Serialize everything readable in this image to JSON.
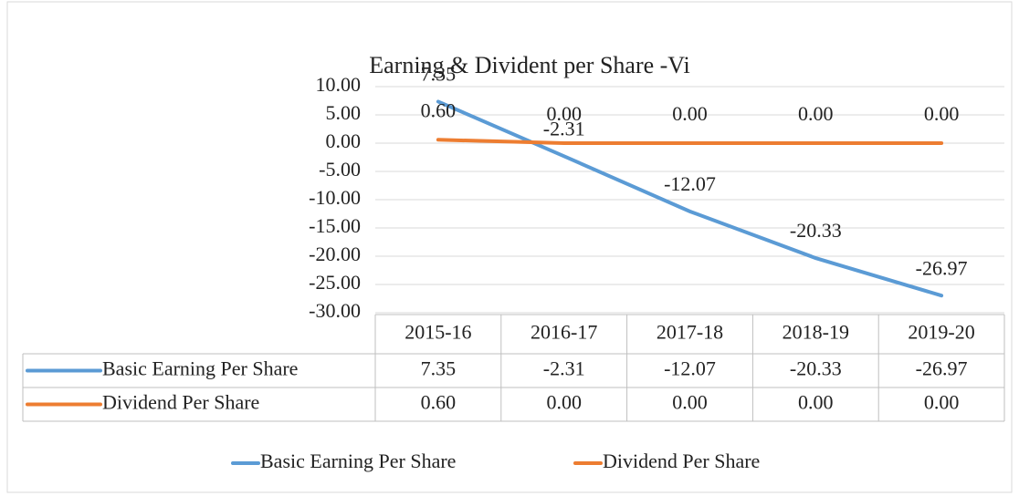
{
  "chart_data": {
    "type": "line",
    "title": "Earning & Divident per Share -Vi",
    "categories": [
      "2015-16",
      "2016-17",
      "2017-18",
      "2018-19",
      "2019-20"
    ],
    "series": [
      {
        "name": "Basic Earning Per Share",
        "color": "#5b9bd5",
        "values": [
          7.35,
          -2.31,
          -12.07,
          -20.33,
          -26.97
        ]
      },
      {
        "name": "Dividend Per Share",
        "color": "#ed7d31",
        "values": [
          0.6,
          0,
          0,
          0,
          0
        ],
        "value_labels": [
          "0.60",
          "0.00",
          "0.00",
          "0.00",
          "0.00"
        ]
      }
    ],
    "ylim": [
      -30,
      10
    ],
    "yticks": [
      {
        "value": -30,
        "label": "-30.00"
      },
      {
        "value": -25,
        "label": "-25.00"
      },
      {
        "value": -20,
        "label": "-20.00"
      },
      {
        "value": -15,
        "label": "-15.00"
      },
      {
        "value": -10,
        "label": "-10.00"
      },
      {
        "value": -5,
        "label": "-5.00"
      },
      {
        "value": 0,
        "label": "0.00"
      },
      {
        "value": 5,
        "label": "5.00"
      },
      {
        "value": 10,
        "label": "10.00"
      }
    ],
    "grid": true,
    "legend": "bottom",
    "data_table": true
  }
}
